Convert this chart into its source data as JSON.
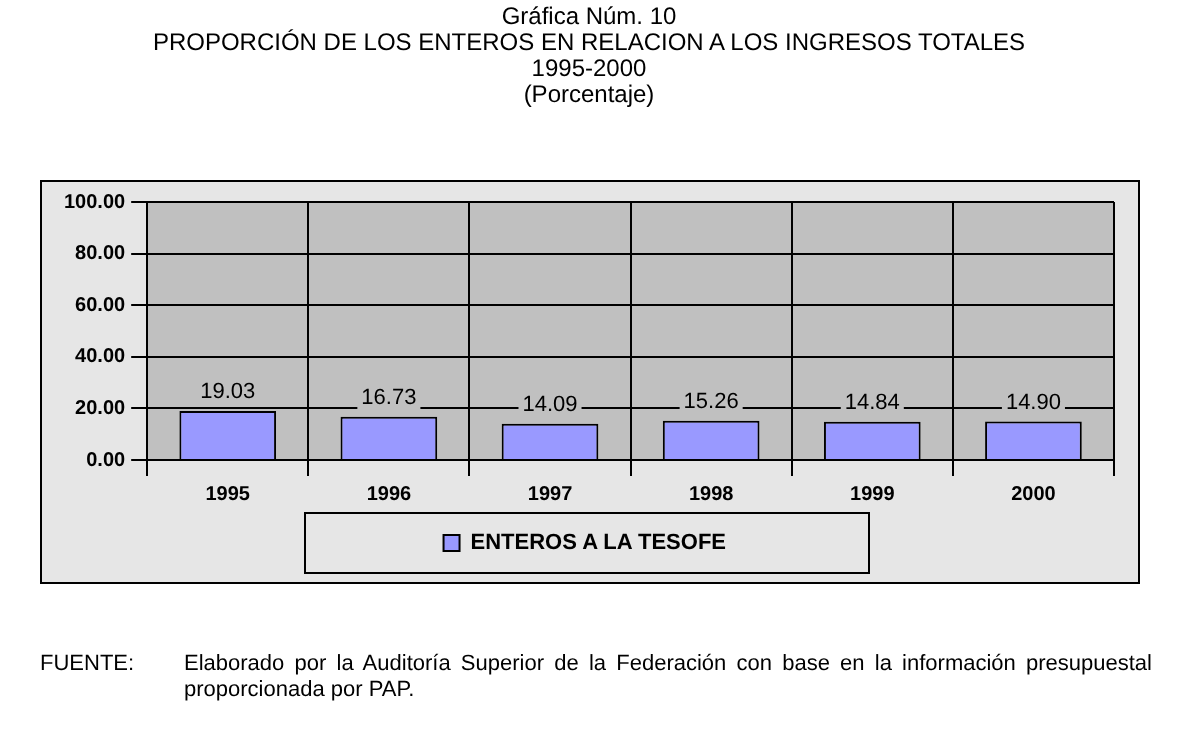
{
  "chart_data": {
    "type": "bar",
    "title": "Gráfica Núm. 10\nPROPORCIÓN DE LOS ENTEROS EN RELACION A LOS INGRESOS TOTALES\n1995-2000\n(Porcentaje)",
    "categories": [
      "1995",
      "1996",
      "1997",
      "1998",
      "1999",
      "2000"
    ],
    "series": [
      {
        "name": "ENTEROS A LA TESOFE",
        "color": "#9999ff",
        "values": [
          19.03,
          16.73,
          14.09,
          15.26,
          14.84,
          14.9
        ],
        "value_labels": [
          "19.03",
          "16.73",
          "14.09",
          "15.26",
          "14.84",
          "14.90"
        ]
      }
    ],
    "ylim": [
      0,
      100
    ],
    "yticks": [
      {
        "value": 0,
        "label": "0.00"
      },
      {
        "value": 20,
        "label": "20.00"
      },
      {
        "value": 40,
        "label": "40.00"
      },
      {
        "value": 60,
        "label": "60.00"
      },
      {
        "value": 80,
        "label": "80.00"
      },
      {
        "value": 100,
        "label": "100.00"
      }
    ],
    "grid": true,
    "legend": "bottom",
    "annotations": [
      "FUENTE:\tElaborado por la Auditoría Superior de la Federación con base en la información presupuestal proporcionada por PAP."
    ]
  }
}
